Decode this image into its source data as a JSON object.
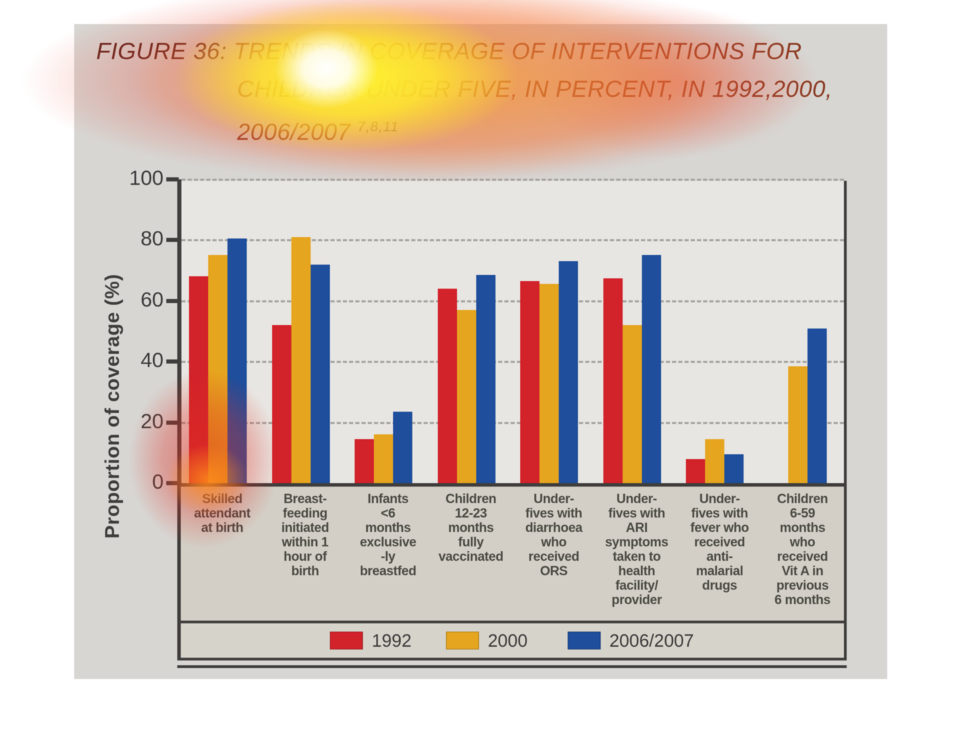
{
  "figure": {
    "title_prefix": "FIGURE 36: ",
    "title_line1_rest": "TRENDS IN COVERAGE OF INTERVENTIONS FOR",
    "title_line2": "CHILDREN UNDER FIVE, IN PERCENT, IN 1992,2000,",
    "title_line3": "2006/2007",
    "title_superscript": "7,8,11"
  },
  "chart_data": {
    "type": "bar",
    "title": "FIGURE 36: TRENDS IN COVERAGE OF INTERVENTIONS FOR CHILDREN UNDER FIVE, IN PERCENT, IN 1992,2000, 2006/2007",
    "xlabel": "",
    "ylabel": "Proportion of coverage (%)",
    "ylim": [
      0,
      100
    ],
    "yticks": [
      0,
      20,
      40,
      60,
      80,
      100
    ],
    "grid": "dashed-horizontal",
    "legend_position": "bottom",
    "categories": [
      "Skilled\nattendant\nat birth",
      "Breast-\nfeeding\ninitiated\nwithin 1\nhour of\nbirth",
      "Infants\n<6\nmonths\nexclusive\n-ly\nbreastfed",
      "Children\n12-23\nmonths\nfully\nvaccinated",
      "Under-\nfives with\ndiarrhoea\nwho\nreceived\nORS",
      "Under-\nfives with\nARI\nsymptoms\ntaken to\nhealth\nfacility/\nprovider",
      "Under-\nfives with\nfever who\nreceived\nanti-\nmalarial\ndrugs",
      "Children\n6-59\nmonths\nwho\nreceived\nVit A in\nprevious\n6 months"
    ],
    "series": [
      {
        "name": "1992",
        "color": "#d2222a",
        "values": [
          68,
          52,
          14.5,
          64,
          66.5,
          67.5,
          8,
          null
        ]
      },
      {
        "name": "2000",
        "color": "#e6a51f",
        "values": [
          75,
          81,
          16,
          57,
          65.5,
          52,
          14.5,
          38.5
        ]
      },
      {
        "name": "2006/2007",
        "color": "#1e4e9c",
        "values": [
          80.5,
          72,
          23.5,
          68.5,
          73,
          75,
          9.5,
          51
        ]
      }
    ]
  }
}
